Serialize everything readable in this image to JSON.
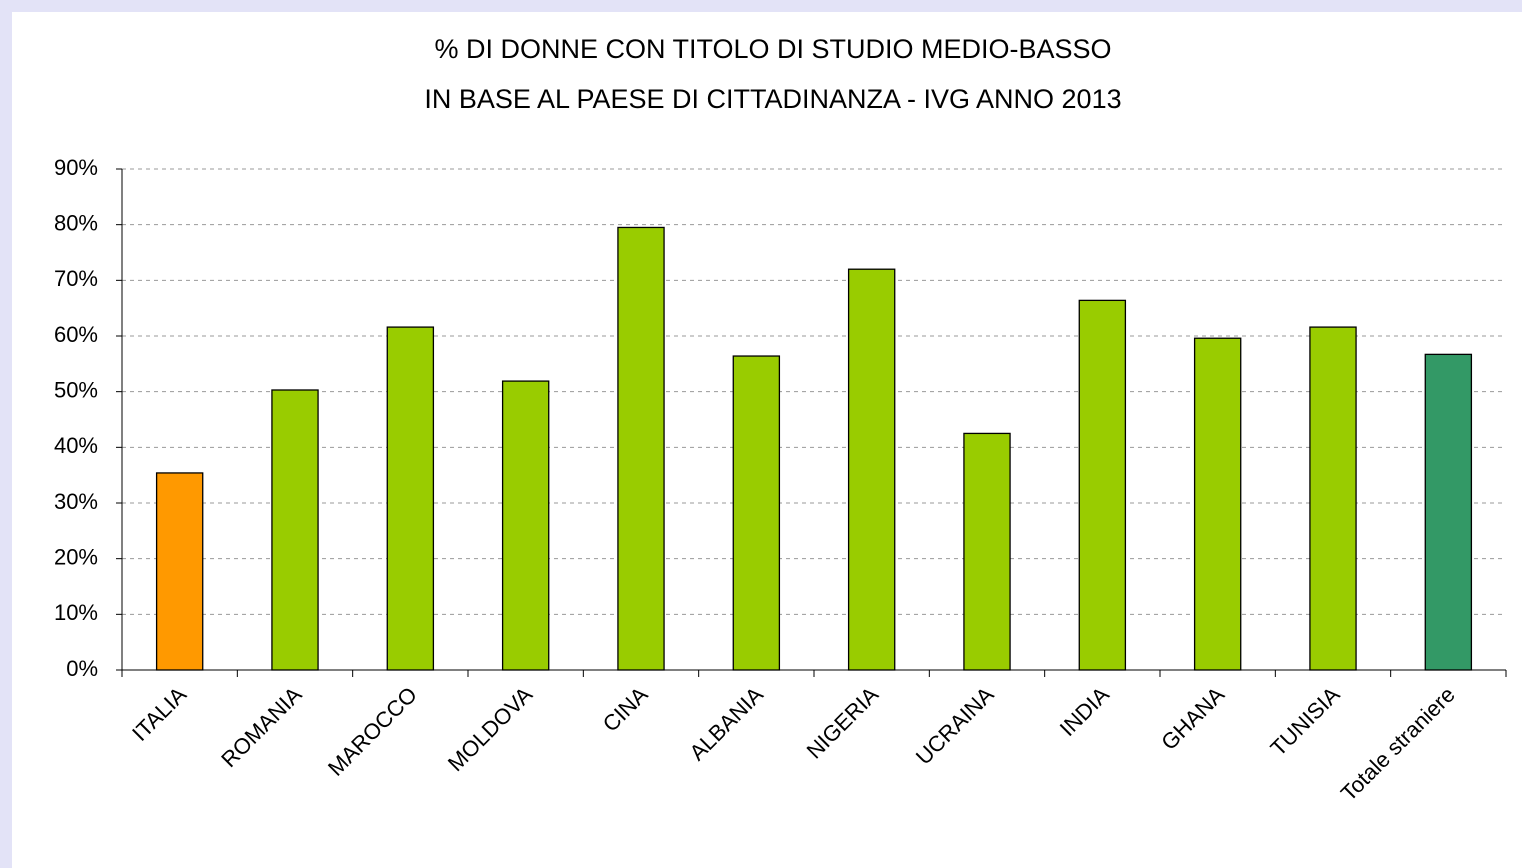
{
  "chart_data": {
    "type": "bar",
    "title": [
      "% DI DONNE CON TITOLO DI STUDIO MEDIO-BASSO",
      "IN BASE AL PAESE DI CITTADINANZA - IVG ANNO 2013"
    ],
    "categories": [
      "ITALIA",
      "ROMANIA",
      "MAROCCO",
      "MOLDOVA",
      "CINA",
      "ALBANIA",
      "NIGERIA",
      "UCRAINA",
      "INDIA",
      "GHANA",
      "TUNISIA",
      "Totale straniere"
    ],
    "values": [
      35.4,
      50.3,
      61.6,
      51.9,
      79.5,
      56.4,
      72.0,
      42.5,
      66.4,
      59.6,
      61.6,
      56.7
    ],
    "colors": [
      "#ff9900",
      "#99cc00",
      "#99cc00",
      "#99cc00",
      "#99cc00",
      "#99cc00",
      "#99cc00",
      "#99cc00",
      "#99cc00",
      "#99cc00",
      "#99cc00",
      "#339966"
    ],
    "ylim": [
      0,
      90
    ],
    "yticks": [
      {
        "value": 0,
        "label": "0%"
      },
      {
        "value": 10,
        "label": "10%"
      },
      {
        "value": 20,
        "label": "20%"
      },
      {
        "value": 30,
        "label": "30%"
      },
      {
        "value": 40,
        "label": "40%"
      },
      {
        "value": 50,
        "label": "50%"
      },
      {
        "value": 60,
        "label": "60%"
      },
      {
        "value": 70,
        "label": "70%"
      },
      {
        "value": 80,
        "label": "80%"
      },
      {
        "value": 90,
        "label": "90%"
      }
    ],
    "grid": true
  }
}
